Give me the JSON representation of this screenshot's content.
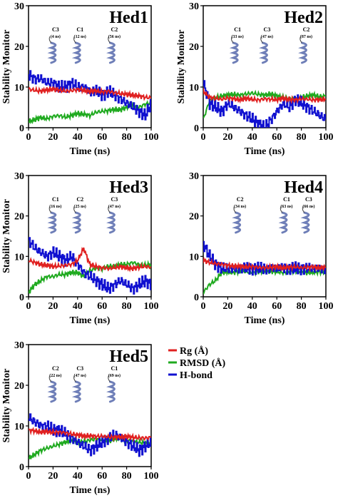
{
  "legend": [
    {
      "label": "Rg (Å)",
      "color": "#e02020"
    },
    {
      "label": "RMSD (Å)",
      "color": "#1faa1f"
    },
    {
      "label": "H-bond",
      "color": "#1010d0"
    }
  ],
  "chart_data": [
    {
      "type": "line",
      "title": "Hed1",
      "xlabel": "Time (ns)",
      "ylabel": "Stability Monitor",
      "xlim": [
        0,
        100
      ],
      "ylim": [
        0,
        30
      ],
      "xticks": [
        "0",
        "20",
        "40",
        "60",
        "80",
        "100"
      ],
      "yticks": [
        "0",
        "10",
        "20",
        "30"
      ],
      "clusters": [
        {
          "name": "C3",
          "time": "(4 ns)"
        },
        {
          "name": "C1",
          "time": "(12 ns)"
        },
        {
          "name": "C2",
          "time": "(56 ns)"
        }
      ],
      "series": [
        {
          "name": "Rg (Å)",
          "color": "#e02020",
          "x": [
            0,
            5,
            10,
            15,
            20,
            25,
            30,
            35,
            40,
            45,
            50,
            55,
            60,
            65,
            70,
            75,
            80,
            85,
            90,
            95,
            100
          ],
          "y": [
            9.5,
            9.2,
            9.0,
            9.3,
            9.5,
            9.2,
            9.0,
            9.1,
            9.4,
            9.2,
            8.9,
            9.1,
            8.8,
            9.0,
            8.6,
            8.4,
            8.2,
            8.0,
            7.8,
            7.5,
            7.3
          ]
        },
        {
          "name": "RMSD (Å)",
          "color": "#1faa1f",
          "x": [
            0,
            5,
            10,
            15,
            20,
            25,
            30,
            35,
            40,
            45,
            50,
            55,
            60,
            65,
            70,
            75,
            80,
            85,
            90,
            95,
            100
          ],
          "y": [
            1.5,
            2.0,
            2.5,
            2.2,
            2.8,
            3.0,
            2.6,
            3.0,
            3.5,
            3.3,
            3.0,
            3.8,
            4.0,
            4.2,
            4.5,
            4.4,
            5.0,
            5.5,
            5.0,
            5.8,
            6.0
          ]
        },
        {
          "name": "H-bond",
          "color": "#1010d0",
          "x": [
            0,
            5,
            10,
            15,
            20,
            25,
            30,
            35,
            40,
            45,
            50,
            55,
            60,
            65,
            70,
            75,
            80,
            85,
            90,
            95,
            100
          ],
          "y": [
            13,
            12,
            12,
            11,
            11,
            10,
            10,
            11,
            10,
            10,
            9,
            9,
            8,
            9,
            8,
            7,
            6,
            5,
            4,
            3,
            6
          ]
        }
      ]
    },
    {
      "type": "line",
      "title": "Hed2",
      "xlabel": "Time (ns)",
      "ylabel": "Stability Monitor",
      "xlim": [
        0,
        100
      ],
      "ylim": [
        0,
        30
      ],
      "xticks": [
        "0",
        "20",
        "40",
        "60",
        "80",
        "100"
      ],
      "yticks": [
        "0",
        "10",
        "20",
        "30"
      ],
      "clusters": [
        {
          "name": "C1",
          "time": "(33 ns)"
        },
        {
          "name": "C3",
          "time": "(47 ns)"
        },
        {
          "name": "C2",
          "time": "(87 ns)"
        }
      ],
      "series": [
        {
          "name": "Rg (Å)",
          "color": "#e02020",
          "x": [
            0,
            5,
            10,
            15,
            20,
            25,
            30,
            35,
            40,
            45,
            50,
            55,
            60,
            65,
            70,
            75,
            80,
            85,
            90,
            95,
            100
          ],
          "y": [
            9,
            7.5,
            7.2,
            7.0,
            7.3,
            7.1,
            6.9,
            7.2,
            7.0,
            6.8,
            7.1,
            7.0,
            6.9,
            7.2,
            7.0,
            6.8,
            7.1,
            7.0,
            6.8,
            6.9,
            7.0
          ]
        },
        {
          "name": "RMSD (Å)",
          "color": "#1faa1f",
          "x": [
            0,
            5,
            10,
            15,
            20,
            25,
            30,
            35,
            40,
            45,
            50,
            55,
            60,
            65,
            70,
            75,
            80,
            85,
            90,
            95,
            100
          ],
          "y": [
            2,
            6.5,
            7.5,
            7.8,
            8.0,
            8.2,
            8.0,
            8.3,
            8.5,
            8.2,
            8.0,
            8.3,
            7.8,
            7.5,
            7.2,
            7.0,
            7.5,
            7.8,
            8.0,
            7.6,
            7.8
          ]
        },
        {
          "name": "H-bond",
          "color": "#1010d0",
          "x": [
            0,
            5,
            10,
            15,
            20,
            25,
            30,
            35,
            40,
            45,
            50,
            55,
            60,
            65,
            70,
            75,
            80,
            85,
            90,
            95,
            100
          ],
          "y": [
            11,
            6,
            5,
            4,
            6,
            5,
            4,
            3,
            2,
            1,
            0,
            2,
            4,
            6,
            5,
            7,
            6,
            5,
            4,
            3,
            2
          ]
        }
      ]
    },
    {
      "type": "line",
      "title": "Hed3",
      "xlabel": "Time (ns)",
      "ylabel": "Stability Monitor",
      "xlim": [
        0,
        100
      ],
      "ylim": [
        0,
        30
      ],
      "xticks": [
        "0",
        "20",
        "40",
        "60",
        "80",
        "100"
      ],
      "yticks": [
        "0",
        "10",
        "20",
        "30"
      ],
      "clusters": [
        {
          "name": "C1",
          "time": "(16 ns)"
        },
        {
          "name": "C2",
          "time": "(25 ns)"
        },
        {
          "name": "C3",
          "time": "(47 ns)"
        }
      ],
      "series": [
        {
          "name": "Rg (Å)",
          "color": "#e02020",
          "x": [
            0,
            5,
            10,
            15,
            20,
            25,
            30,
            35,
            40,
            45,
            50,
            55,
            60,
            65,
            70,
            75,
            80,
            85,
            90,
            95,
            100
          ],
          "y": [
            9,
            8.5,
            8.0,
            7.8,
            7.5,
            7.6,
            7.8,
            8.0,
            9.0,
            12.0,
            8.0,
            7.5,
            7.2,
            7.0,
            7.2,
            7.4,
            7.2,
            7.0,
            7.3,
            7.5,
            7.4
          ]
        },
        {
          "name": "RMSD (Å)",
          "color": "#1faa1f",
          "x": [
            0,
            5,
            10,
            15,
            20,
            25,
            30,
            35,
            40,
            45,
            50,
            55,
            60,
            65,
            70,
            75,
            80,
            85,
            90,
            95,
            100
          ],
          "y": [
            1,
            3,
            4,
            5,
            5,
            5.5,
            5.5,
            6,
            6,
            5,
            6.5,
            7,
            7,
            7.5,
            7.5,
            8,
            8,
            8.5,
            8,
            7.8,
            8
          ]
        },
        {
          "name": "H-bond",
          "color": "#1010d0",
          "x": [
            0,
            5,
            10,
            15,
            20,
            25,
            30,
            35,
            40,
            45,
            50,
            55,
            60,
            65,
            70,
            75,
            80,
            85,
            90,
            95,
            100
          ],
          "y": [
            14,
            12,
            11,
            10,
            11,
            10,
            9,
            10,
            8,
            6,
            5,
            4,
            3,
            2,
            3,
            4,
            3,
            2,
            3,
            4,
            3
          ]
        }
      ]
    },
    {
      "type": "line",
      "title": "Hed4",
      "xlabel": "Time (ns)",
      "ylabel": "",
      "xlim": [
        0,
        100
      ],
      "ylim": [
        0,
        30
      ],
      "xticks": [
        "0",
        "20",
        "40",
        "60",
        "80",
        "100"
      ],
      "yticks": [
        "0",
        "10",
        "20",
        "30"
      ],
      "clusters": [
        {
          "name": "C2",
          "time": "(34 ns)"
        },
        {
          "name": "C1",
          "time": "(63 ns)"
        },
        {
          "name": "C3",
          "time": "(66 ns)"
        }
      ],
      "series": [
        {
          "name": "Rg (Å)",
          "color": "#e02020",
          "x": [
            0,
            5,
            10,
            15,
            20,
            25,
            30,
            35,
            40,
            45,
            50,
            55,
            60,
            65,
            70,
            75,
            80,
            85,
            90,
            95,
            100
          ],
          "y": [
            9,
            8.5,
            8.2,
            8.0,
            7.8,
            7.6,
            7.5,
            7.4,
            7.5,
            7.3,
            7.2,
            7.3,
            7.4,
            7.2,
            7.3,
            7.4,
            7.2,
            7.3,
            7.4,
            7.2,
            7.3
          ]
        },
        {
          "name": "RMSD (Å)",
          "color": "#1faa1f",
          "x": [
            0,
            5,
            10,
            15,
            20,
            25,
            30,
            35,
            40,
            45,
            50,
            55,
            60,
            65,
            70,
            75,
            80,
            85,
            90,
            95,
            100
          ],
          "y": [
            1,
            3,
            4,
            6,
            6.2,
            6.0,
            6.3,
            6.2,
            6.0,
            6.2,
            6.4,
            6.3,
            6.2,
            6.0,
            6.1,
            6.3,
            6.2,
            6.0,
            6.1,
            6.2,
            6.0
          ]
        },
        {
          "name": "H-bond",
          "color": "#1010d0",
          "x": [
            0,
            5,
            10,
            15,
            20,
            25,
            30,
            35,
            40,
            45,
            50,
            55,
            60,
            65,
            70,
            75,
            80,
            85,
            90,
            95,
            100
          ],
          "y": [
            13,
            10,
            8,
            7,
            7,
            7,
            7,
            7,
            7,
            7,
            7,
            7,
            7,
            7,
            7,
            7,
            7,
            7,
            7,
            7,
            7
          ]
        }
      ]
    },
    {
      "type": "line",
      "title": "Hed5",
      "xlabel": "Time (ns)",
      "ylabel": "Stability Monitor",
      "xlim": [
        0,
        100
      ],
      "ylim": [
        0,
        30
      ],
      "xticks": [
        "0",
        "20",
        "40",
        "60",
        "80",
        "100"
      ],
      "yticks": [
        "0",
        "10",
        "20",
        "30"
      ],
      "clusters": [
        {
          "name": "C2",
          "time": "(22 ns)"
        },
        {
          "name": "C3",
          "time": "(47 ns)"
        },
        {
          "name": "C1",
          "time": "(69 ns)"
        }
      ],
      "series": [
        {
          "name": "Rg (Å)",
          "color": "#e02020",
          "x": [
            0,
            5,
            10,
            15,
            20,
            25,
            30,
            35,
            40,
            45,
            50,
            55,
            60,
            65,
            70,
            75,
            80,
            85,
            90,
            95,
            100
          ],
          "y": [
            9,
            8.8,
            8.5,
            8.6,
            8.4,
            8.5,
            8.3,
            8.0,
            7.8,
            7.5,
            7.6,
            7.4,
            7.5,
            7.3,
            7.2,
            7.3,
            7.4,
            7.2,
            7.1,
            7.0,
            7.2
          ]
        },
        {
          "name": "RMSD (Å)",
          "color": "#1faa1f",
          "x": [
            0,
            5,
            10,
            15,
            20,
            25,
            30,
            35,
            40,
            45,
            50,
            55,
            60,
            65,
            70,
            75,
            80,
            85,
            90,
            95,
            100
          ],
          "y": [
            2,
            3,
            4,
            4.5,
            5,
            5.5,
            6,
            6.5,
            6.0,
            6.2,
            6.5,
            6.8,
            6.5,
            6.3,
            6.8,
            7.0,
            6.5,
            6.2,
            6.0,
            5.8,
            5.5
          ]
        },
        {
          "name": "H-bond",
          "color": "#1010d0",
          "x": [
            0,
            5,
            10,
            15,
            20,
            25,
            30,
            35,
            40,
            45,
            50,
            55,
            60,
            65,
            70,
            75,
            80,
            85,
            90,
            95,
            100
          ],
          "y": [
            12,
            11,
            10,
            10,
            9,
            9,
            8,
            7,
            6,
            5,
            4,
            5,
            6,
            7,
            8,
            7,
            6,
            5,
            4,
            5,
            6
          ]
        }
      ]
    }
  ]
}
